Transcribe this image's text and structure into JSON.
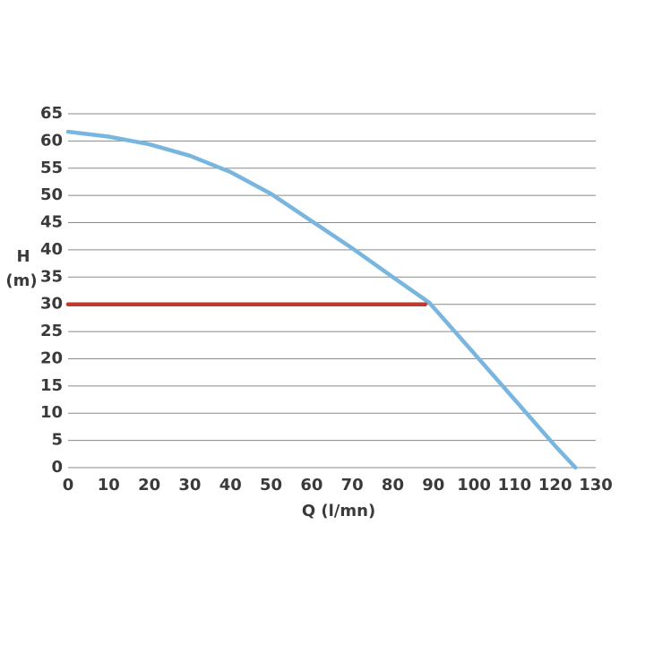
{
  "chart_data": {
    "type": "line",
    "ylabel": [
      "H",
      "(m)"
    ],
    "xlabel": "Q (l/mn)",
    "xlim": [
      0,
      130
    ],
    "xticks": [
      0,
      10,
      20,
      30,
      40,
      50,
      60,
      70,
      80,
      90,
      100,
      110,
      120,
      130
    ],
    "ylim": [
      0,
      65
    ],
    "yticks": [
      0,
      5,
      10,
      15,
      20,
      25,
      30,
      35,
      40,
      45,
      50,
      55,
      60,
      65
    ],
    "grid": true,
    "series": [
      {
        "color": "#78b6df",
        "x": [
          0,
          10,
          20,
          30,
          40,
          50,
          60,
          70,
          80,
          89,
          100,
          110,
          120,
          125
        ],
        "values": [
          61.7,
          60.8,
          59.4,
          57.3,
          54.3,
          50.3,
          45.3,
          40.3,
          35,
          30.3,
          21,
          12.5,
          4,
          0
        ]
      },
      {
        "color": "#c0392b",
        "x": [
          0,
          88
        ],
        "values": [
          30,
          30
        ]
      }
    ]
  }
}
